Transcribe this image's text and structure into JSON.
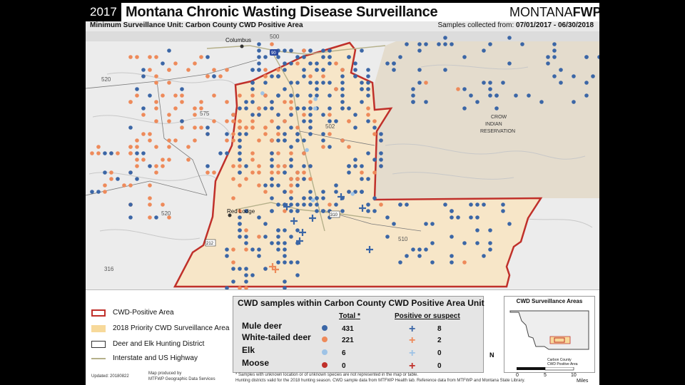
{
  "header": {
    "year": "2017",
    "title": "Montana Chronic Wasting Disease Surveillance",
    "logo_light": "MONTANA",
    "logo_bold": "FWP"
  },
  "subheader": {
    "unit_title": "Minimum Surveillance Unit: Carbon County CWD Positive Area",
    "samples_label": "Samples collected from:",
    "dates": "07/01/2017 - 06/30/2018"
  },
  "map_labels": {
    "columbus": "Columbus",
    "red_lodge": "Red Lodge",
    "crow": "CROW",
    "indian": "INDIAN",
    "reservation": "RESERVATION",
    "hd_500": "500",
    "hd_520a": "520",
    "hd_575": "575",
    "hd_502": "502",
    "hd_520b": "520",
    "hd_510": "510",
    "hd_316": "316",
    "hwy_90": "90",
    "hwy_212": "212",
    "hwy_310": "310"
  },
  "colors": {
    "positive_area_outline": "#c0302a",
    "priority_area_fill": "#f7e6c8",
    "mule_deer": "#3b66a6",
    "white_tailed_deer": "#ee8a5a",
    "elk": "#9ec3e6",
    "moose": "#c0302a",
    "positive_mule_deer": "#3b66a6",
    "positive_white_tailed": "#ee8a5a",
    "positive_elk": "#9ec3e6",
    "positive_moose": "#c0302a"
  },
  "legend": {
    "items": [
      {
        "label": "CWD-Positive Area"
      },
      {
        "label": "2018 Priority CWD Surveillance Area"
      },
      {
        "label": "Deer and Elk Hunting District"
      },
      {
        "label": "Interstate and US Highway"
      }
    ],
    "updated": "Updated: 20180822",
    "produced_by": "Map produced by",
    "produced_org": "MTFWP Geographic Data Services"
  },
  "table": {
    "title": "CWD samples within Carbon County CWD Positive Area Unit",
    "total_header": "Total",
    "total_star": "*",
    "positive_header": "Positive or suspect",
    "rows": [
      {
        "label": "Mule deer",
        "total": "431",
        "positive": "8"
      },
      {
        "label": "White-tailed deer",
        "total": "221",
        "positive": "2"
      },
      {
        "label": "Elk",
        "total": "6",
        "positive": "0"
      },
      {
        "label": "Moose",
        "total": "0",
        "positive": "0"
      }
    ],
    "footnote1": "* Samples with unknown location or of unknown species are not represented in the map or table.",
    "footnote2": "Hunting districts valid for the 2018 hunting season. CWD sample data from MTFWP Health lab. Reference data from MTFWP and Montana State Library."
  },
  "inset": {
    "title": "CWD Surveillance Areas",
    "label_a": "Carbon County",
    "label_b": "CWD Positive Area"
  },
  "scale": {
    "ticks": [
      "0",
      "5",
      "10"
    ],
    "unit": "Miles"
  },
  "compass": "N"
}
